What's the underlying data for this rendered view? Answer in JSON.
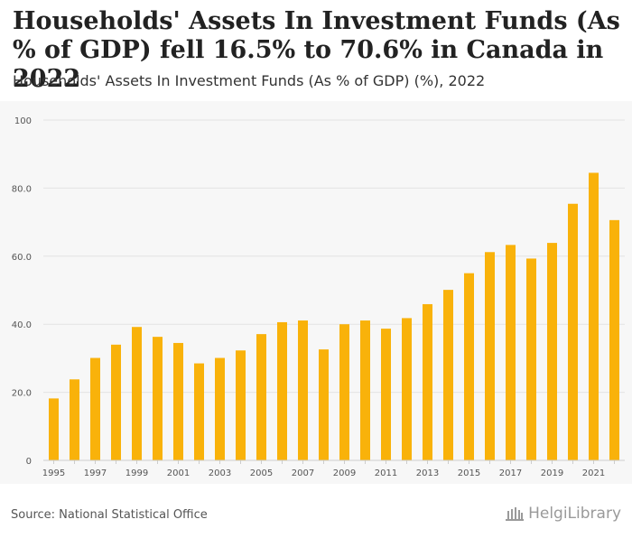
{
  "header": {
    "title": "Households' Assets In Investment Funds (As % of GDP) fell 16.5% to 70.6% in Canada in 2022",
    "subtitle": "Households' Assets In Investment Funds (As % of GDP) (%), 2022"
  },
  "footer": {
    "source": "Source: National Statistical Office",
    "logo_text": "HelgiLibrary"
  },
  "colors": {
    "bar": "#f9b20a",
    "grid": "#e3e3e3",
    "axis_text": "#555555"
  },
  "chart_data": {
    "type": "bar",
    "title": "Households' Assets In Investment Funds (As % of GDP) (%), 2022",
    "xlabel": "",
    "ylabel": "",
    "ylim": [
      0,
      100
    ],
    "yticks": [
      0,
      20.0,
      40.0,
      60.0,
      80.0,
      100
    ],
    "ytick_labels": [
      "0",
      "20.0",
      "40.0",
      "60.0",
      "80.0",
      "100"
    ],
    "categories": [
      "1995",
      "1996",
      "1997",
      "1998",
      "1999",
      "2000",
      "2001",
      "2002",
      "2003",
      "2004",
      "2005",
      "2006",
      "2007",
      "2008",
      "2009",
      "2010",
      "2011",
      "2012",
      "2013",
      "2014",
      "2015",
      "2016",
      "2017",
      "2018",
      "2019",
      "2020",
      "2021",
      "2022"
    ],
    "xtick_labels": [
      "1995",
      "1997",
      "1999",
      "2001",
      "2003",
      "2005",
      "2007",
      "2009",
      "2011",
      "2013",
      "2015",
      "2017",
      "2019",
      "2021"
    ],
    "values": [
      18.2,
      23.8,
      30.1,
      34.0,
      39.2,
      36.3,
      34.5,
      28.5,
      30.1,
      32.3,
      37.1,
      40.6,
      41.1,
      32.6,
      40.0,
      41.1,
      38.7,
      41.8,
      45.9,
      50.1,
      55.0,
      61.2,
      63.3,
      59.3,
      63.9,
      75.4,
      84.5,
      70.6
    ]
  }
}
